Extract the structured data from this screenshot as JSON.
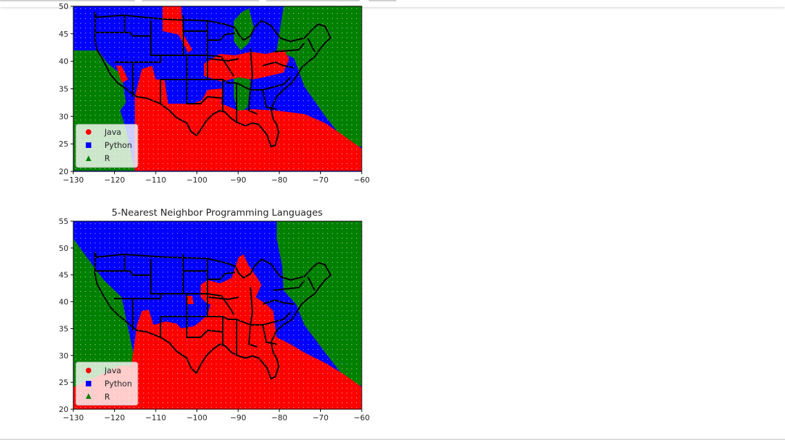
{
  "chart_data": [
    {
      "type": "heatmap",
      "title": "",
      "xlabel": "",
      "ylabel": "",
      "xlim": [
        -130,
        -60
      ],
      "ylim": [
        20,
        50
      ],
      "xticks": [
        "−130",
        "−120",
        "−110",
        "−100",
        "−90",
        "−80",
        "−70",
        "−60"
      ],
      "yticks": [
        "20",
        "25",
        "30",
        "35",
        "40",
        "45",
        "50"
      ],
      "legend": {
        "position": "lower-left",
        "entries": [
          {
            "label": "Java",
            "marker": "circle",
            "color": "#ff0000"
          },
          {
            "label": "Python",
            "marker": "square",
            "color": "#0000ff"
          },
          {
            "label": "R",
            "marker": "triangle",
            "color": "#008000"
          }
        ]
      },
      "grid": false
    },
    {
      "type": "heatmap",
      "title": "5-Nearest Neighbor Programming Languages",
      "xlabel": "",
      "ylabel": "",
      "xlim": [
        -130,
        -60
      ],
      "ylim": [
        20,
        55
      ],
      "xticks": [
        "−130",
        "−120",
        "−110",
        "−100",
        "−90",
        "−80",
        "−70",
        "−60"
      ],
      "yticks": [
        "20",
        "25",
        "30",
        "35",
        "40",
        "45",
        "50",
        "55"
      ],
      "legend": {
        "position": "lower-left",
        "entries": [
          {
            "label": "Java",
            "marker": "circle",
            "color": "#ff0000"
          },
          {
            "label": "Python",
            "marker": "square",
            "color": "#0000ff"
          },
          {
            "label": "R",
            "marker": "triangle",
            "color": "#008000"
          }
        ]
      },
      "grid": false
    }
  ]
}
